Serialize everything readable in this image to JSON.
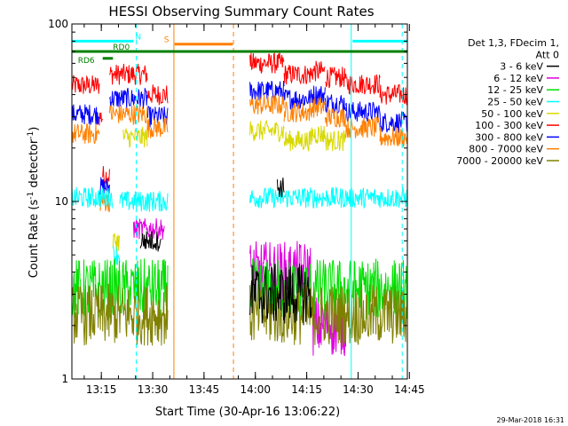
{
  "chart_data": {
    "type": "line",
    "title": "HESSI Observing Summary Count Rates",
    "xlabel": "Start Time (30-Apr-16 13:06:22)",
    "ylabel_main": "Count Rate (s",
    "ylabel_sup": "-1",
    "ylabel_tail": " detector",
    "ylabel_sup2": "-1",
    "ylabel_close": ")",
    "yscale": "log",
    "ylim": [
      1,
      100
    ],
    "xlim_minutes": [
      0,
      98
    ],
    "x_ticks": [
      {
        "t": 8.6,
        "label": "13:15"
      },
      {
        "t": 23.6,
        "label": "13:30"
      },
      {
        "t": 38.6,
        "label": "13:45"
      },
      {
        "t": 53.6,
        "label": "14:00"
      },
      {
        "t": 68.6,
        "label": "14:15"
      },
      {
        "t": 83.6,
        "label": "14:30"
      },
      {
        "t": 98.6,
        "label": "14:45"
      }
    ],
    "y_ticks": [
      {
        "v": 1,
        "label": "1"
      },
      {
        "v": 10,
        "label": "10"
      },
      {
        "v": 100,
        "label": "100"
      }
    ],
    "legend_header": [
      "Det 1,3, FDecim 1,",
      "Att 0"
    ],
    "legend": [
      {
        "name": "3 - 6 keV",
        "color": "#000000"
      },
      {
        "name": "6 - 12 keV",
        "color": "#e000e0"
      },
      {
        "name": "12 - 25 keV",
        "color": "#00e000"
      },
      {
        "name": "25 - 50 keV",
        "color": "#00ffff"
      },
      {
        "name": "50 - 100 keV",
        "color": "#d8d800"
      },
      {
        "name": "100 - 300 keV",
        "color": "#ff0000"
      },
      {
        "name": "300 - 800 keV",
        "color": "#0000ff"
      },
      {
        "name": "800 - 7000 keV",
        "color": "#ff8000"
      },
      {
        "name": "7000 - 20000 keV",
        "color": "#808000"
      }
    ],
    "series_levels": [
      {
        "name": "100 - 300 keV",
        "segments": [
          [
            0,
            8,
            45
          ],
          [
            8,
            9,
            30
          ],
          [
            9,
            11,
            14
          ],
          [
            11,
            22,
            52
          ],
          [
            22,
            28,
            40
          ],
          [
            52,
            62,
            60
          ],
          [
            62,
            70,
            52
          ],
          [
            70,
            74,
            54
          ],
          [
            74,
            80,
            50
          ],
          [
            80,
            90,
            46
          ],
          [
            90,
            98,
            40
          ]
        ]
      },
      {
        "name": "300 - 800 keV",
        "segments": [
          [
            0,
            8,
            31
          ],
          [
            8,
            11,
            12
          ],
          [
            11,
            22,
            38
          ],
          [
            22,
            28,
            30
          ],
          [
            52,
            62,
            42
          ],
          [
            62,
            70,
            38
          ],
          [
            70,
            74,
            40
          ],
          [
            74,
            80,
            36
          ],
          [
            80,
            90,
            32
          ],
          [
            90,
            98,
            28
          ]
        ]
      },
      {
        "name": "800 - 7000 keV",
        "segments": [
          [
            0,
            8,
            24
          ],
          [
            8,
            11,
            10
          ],
          [
            11,
            22,
            31
          ],
          [
            22,
            28,
            26
          ],
          [
            52,
            62,
            35
          ],
          [
            62,
            70,
            32
          ],
          [
            70,
            74,
            34
          ],
          [
            74,
            80,
            30
          ],
          [
            80,
            90,
            26
          ],
          [
            90,
            98,
            23
          ]
        ]
      },
      {
        "name": "50 - 100 keV",
        "segments": [
          [
            12,
            14,
            6
          ],
          [
            15,
            22,
            23
          ],
          [
            52,
            62,
            25
          ],
          [
            62,
            70,
            22
          ],
          [
            70,
            74,
            24
          ],
          [
            74,
            80,
            22
          ]
        ]
      },
      {
        "name": "25 - 50 keV",
        "segments": [
          [
            0,
            12,
            10.5
          ],
          [
            12,
            14,
            5
          ],
          [
            14,
            28,
            10
          ],
          [
            52,
            98,
            10.5
          ]
        ]
      },
      {
        "name": "6 - 12 keV",
        "segments": [
          [
            18,
            27,
            7
          ],
          [
            52,
            70,
            4
          ],
          [
            70,
            80,
            2
          ]
        ]
      },
      {
        "name": "12 - 25 keV",
        "segments": [
          [
            0,
            28,
            3.2
          ],
          [
            52,
            98,
            3.2
          ]
        ]
      },
      {
        "name": "7000 - 20000 keV",
        "segments": [
          [
            0,
            28,
            2.3
          ],
          [
            52,
            98,
            2.3
          ]
        ]
      },
      {
        "name": "3 - 6 keV",
        "segments": [
          [
            20,
            26,
            6
          ],
          [
            60,
            62,
            12
          ],
          [
            52,
            70,
            3
          ]
        ]
      }
    ],
    "flags": [
      {
        "label": "N",
        "color": "#00ffff",
        "segments": [
          [
            0,
            18
          ],
          [
            82,
            98
          ]
        ],
        "level": 80
      },
      {
        "label": "S",
        "color": "#ff8000",
        "segments": [
          [
            30,
            47
          ]
        ],
        "level": 77
      },
      {
        "label": "RD0",
        "color": "#008000",
        "segments": [
          [
            0,
            98
          ]
        ],
        "level": 70
      },
      {
        "label": "RD6",
        "color": "#008000",
        "segments": [
          [
            9,
            12
          ]
        ],
        "level": 64
      }
    ],
    "vlines": [
      {
        "t": 18.8,
        "color": "#00ffff",
        "style": "dashed"
      },
      {
        "t": 29.8,
        "color": "#ff8000",
        "style": "solid"
      },
      {
        "t": 47.2,
        "color": "#ff8000",
        "style": "dashed"
      },
      {
        "t": 81.6,
        "color": "#00ffff",
        "style": "solid"
      },
      {
        "t": 96.5,
        "color": "#00ffff",
        "style": "dashed"
      }
    ],
    "gaps_minutes": [
      [
        28,
        52
      ]
    ],
    "timestamp": "29-Mar-2018 16:31"
  }
}
